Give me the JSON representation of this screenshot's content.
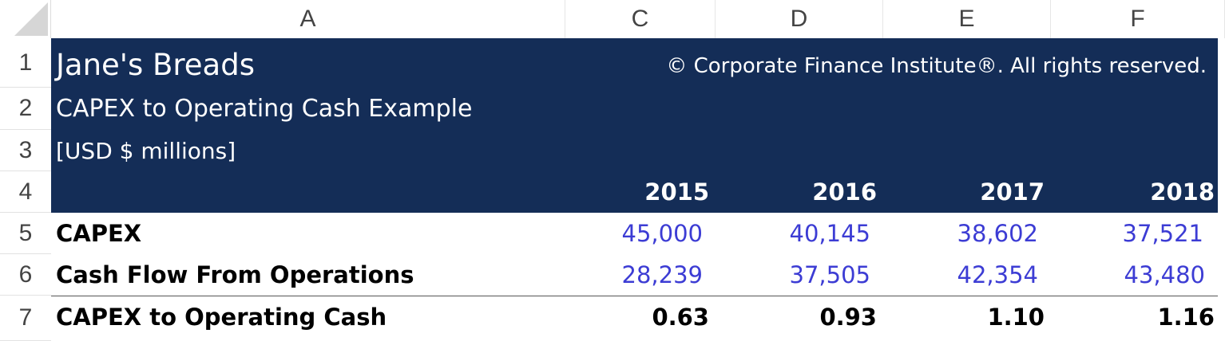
{
  "columns": [
    "A",
    "C",
    "D",
    "E",
    "F"
  ],
  "rows": [
    "1",
    "2",
    "3",
    "4",
    "5",
    "6",
    "7"
  ],
  "header": {
    "title": "Jane's Breads",
    "copyright": "© Corporate Finance Institute®. All rights reserved.",
    "subtitle": "CAPEX to Operating Cash Example",
    "units": "[USD $ millions]"
  },
  "years": [
    "2015",
    "2016",
    "2017",
    "2018"
  ],
  "table": [
    {
      "label": "CAPEX",
      "values": [
        "45,000",
        "40,145",
        "38,602",
        "37,521"
      ]
    },
    {
      "label": "Cash Flow From Operations",
      "values": [
        "28,239",
        "37,505",
        "42,354",
        "43,480"
      ]
    },
    {
      "label": "CAPEX to Operating Cash",
      "values": [
        "0.63",
        "0.93",
        "1.10",
        "1.16"
      ]
    }
  ],
  "colors": {
    "header_band": "#142d57",
    "input_text": "#3c3cd4"
  }
}
